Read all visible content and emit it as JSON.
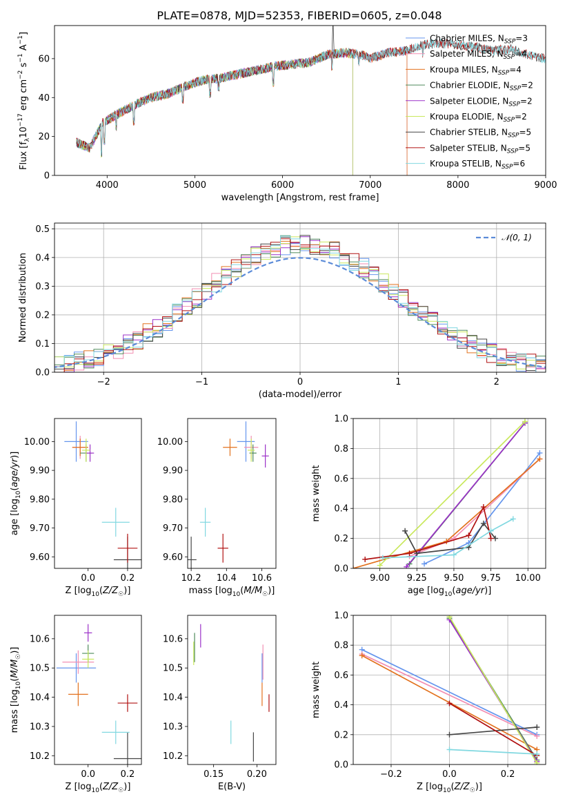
{
  "figure": {
    "title": "PLATE=0878, MJD=52353, FIBERID=0605, z=0.048"
  },
  "colors": {
    "Chabrier MILES": "#6495ed",
    "Salpeter MILES": "#f28eb2",
    "Kroupa MILES": "#e2711d",
    "Chabrier ELODIE": "#4e8a5a",
    "Salpeter ELODIE": "#9b30c8",
    "Kroupa ELODIE": "#c9e85c",
    "Chabrier STELIB": "#444444",
    "Salpeter STELIB": "#b01010",
    "Kroupa STELIB": "#80d8e0"
  },
  "labels": {
    "spectrum_x": "wavelength [Angstrom, rest frame]",
    "spectrum_y": "Flux [f_λ10^-17 erg cm^-2 s^-1 A^-1]",
    "hist_x": "(data-model)/error",
    "hist_y": "Normed distribution",
    "gauss": "𝒩(0, 1)",
    "age_y": "age [log10(age/yr)]",
    "z_x": "Z [log10(Z/Z☉)]",
    "mass_x": "mass [log10(M/M☉)]",
    "mass_y": "mass [log10(M/M☉)]",
    "ebv_x": "E(B-V)",
    "mw_y": "mass weight",
    "age_x": "age [log10(age/yr)]"
  },
  "chart_data": [
    {
      "id": "spectrum",
      "type": "line",
      "title": "PLATE=0878, MJD=52353, FIBERID=0605, z=0.048",
      "xlabel": "wavelength [Angstrom, rest frame]",
      "ylabel": "Flux [fλ10^-17 erg cm^-2 s^-1 A^-1]",
      "xlim": [
        3400,
        9000
      ],
      "ylim": [
        0,
        77
      ],
      "xticks": [
        4000,
        5000,
        6000,
        7000,
        8000,
        9000
      ],
      "yticks": [
        0,
        20,
        40,
        60
      ],
      "legend_loc": "right",
      "series": [
        {
          "name": "Chabrier MILES",
          "nssp": "3"
        },
        {
          "name": "Salpeter MILES",
          "nssp": "4"
        },
        {
          "name": "Kroupa MILES",
          "nssp": "4"
        },
        {
          "name": "Chabrier ELODIE",
          "nssp": "2"
        },
        {
          "name": "Salpeter ELODIE",
          "nssp": "2"
        },
        {
          "name": "Kroupa ELODIE",
          "nssp": "2"
        },
        {
          "name": "Chabrier STELIB",
          "nssp": "5"
        },
        {
          "name": "Salpeter STELIB",
          "nssp": "5"
        },
        {
          "name": "Kroupa STELIB",
          "nssp": "6"
        }
      ],
      "continuum": {
        "x": [
          3650,
          3800,
          3950,
          4100,
          4300,
          4500,
          4700,
          4900,
          5100,
          5300,
          5500,
          5700,
          5900,
          6100,
          6300,
          6500,
          6700,
          6900,
          7000,
          7200,
          7400,
          7600,
          7800,
          8000,
          8200,
          8400,
          8600,
          8800,
          9000
        ],
        "y": [
          17,
          14,
          27,
          31,
          36,
          40,
          42,
          46,
          49,
          50,
          52,
          54,
          56,
          57,
          58,
          62,
          63,
          62,
          60,
          63,
          64,
          67,
          68,
          67,
          66,
          64,
          65,
          62,
          60
        ]
      },
      "cutoffs": [
        {
          "series": "Kroupa ELODIE",
          "x": 6800
        },
        {
          "series": "Chabrier ELODIE",
          "x": 6800
        },
        {
          "series": "Salpeter ELODIE",
          "x": 6800
        },
        {
          "series": "Kroupa MILES",
          "x": 7420
        },
        {
          "series": "Salpeter MILES",
          "x": 7420
        },
        {
          "series": "Chabrier MILES",
          "x": 7420
        }
      ]
    },
    {
      "id": "residuals",
      "type": "line",
      "xlabel": "(data-model)/error",
      "ylabel": "Normed distribution",
      "xlim": [
        -2.5,
        2.5
      ],
      "ylim": [
        0,
        0.52
      ],
      "xticks": [
        -2,
        -1,
        0,
        1,
        2
      ],
      "yticks": [
        0.0,
        0.1,
        0.2,
        0.3,
        0.4,
        0.5
      ],
      "grid": true,
      "bin_width": 0.1,
      "gaussian_label": "𝒩(0, 1)",
      "legend_loc": "upper right"
    },
    {
      "id": "z-age",
      "type": "scatter",
      "xlabel": "Z [log10(Z/Z☉)]",
      "ylabel": "age [log10(age/yr)]",
      "xlim": [
        -0.17,
        0.27
      ],
      "ylim": [
        9.56,
        10.08
      ],
      "xticks": [
        0.0,
        0.2
      ],
      "yticks": [
        9.6,
        9.7,
        9.8,
        9.9,
        10.0
      ],
      "points": [
        {
          "series": "Chabrier MILES",
          "x": -0.06,
          "y": 10.0,
          "xerr": 0.06,
          "yerr": 0.07
        },
        {
          "series": "Salpeter MILES",
          "x": -0.04,
          "y": 9.98,
          "xerr": 0.04,
          "yerr": 0.04
        },
        {
          "series": "Kroupa MILES",
          "x": -0.04,
          "y": 9.98,
          "xerr": 0.04,
          "yerr": 0.03
        },
        {
          "series": "Chabrier ELODIE",
          "x": -0.01,
          "y": 9.96,
          "xerr": 0.03,
          "yerr": 0.03
        },
        {
          "series": "Salpeter ELODIE",
          "x": 0.01,
          "y": 9.96,
          "xerr": 0.02,
          "yerr": 0.03
        },
        {
          "series": "Kroupa ELODIE",
          "x": -0.01,
          "y": 9.97,
          "xerr": 0.02,
          "yerr": 0.04
        },
        {
          "series": "Chabrier STELIB",
          "x": 0.2,
          "y": 9.59,
          "xerr": 0.07,
          "yerr": 0.08
        },
        {
          "series": "Salpeter STELIB",
          "x": 0.2,
          "y": 9.63,
          "xerr": 0.05,
          "yerr": 0.05
        },
        {
          "series": "Kroupa STELIB",
          "x": 0.14,
          "y": 9.72,
          "xerr": 0.07,
          "yerr": 0.05
        }
      ]
    },
    {
      "id": "mass-age",
      "type": "scatter",
      "xlabel": "mass [log10(M/M☉)]",
      "ylabel": "",
      "xlim": [
        10.18,
        10.68
      ],
      "ylim": [
        9.56,
        10.08
      ],
      "xticks": [
        10.2,
        10.4,
        10.6
      ],
      "yticks": [
        9.6,
        9.7,
        9.8,
        9.9,
        10.0
      ],
      "points": [
        {
          "series": "Chabrier MILES",
          "x": 10.51,
          "y": 10.0,
          "xerr": 0.05,
          "yerr": 0.07
        },
        {
          "series": "Salpeter MILES",
          "x": 10.54,
          "y": 9.98,
          "xerr": 0.04,
          "yerr": 0.04
        },
        {
          "series": "Kroupa MILES",
          "x": 10.42,
          "y": 9.98,
          "xerr": 0.04,
          "yerr": 0.03
        },
        {
          "series": "Chabrier ELODIE",
          "x": 10.55,
          "y": 9.96,
          "xerr": 0.02,
          "yerr": 0.03
        },
        {
          "series": "Salpeter ELODIE",
          "x": 10.62,
          "y": 9.95,
          "xerr": 0.02,
          "yerr": 0.04
        },
        {
          "series": "Kroupa ELODIE",
          "x": 10.54,
          "y": 9.97,
          "xerr": 0.02,
          "yerr": 0.04
        },
        {
          "series": "Chabrier STELIB",
          "x": 10.2,
          "y": 9.59,
          "xerr": 0.03,
          "yerr": 0.08
        },
        {
          "series": "Salpeter STELIB",
          "x": 10.38,
          "y": 9.63,
          "xerr": 0.03,
          "yerr": 0.05
        },
        {
          "series": "Kroupa STELIB",
          "x": 10.28,
          "y": 9.72,
          "xerr": 0.03,
          "yerr": 0.05
        }
      ]
    },
    {
      "id": "age-weight",
      "type": "line",
      "xlabel": "age [log10(age/yr)]",
      "ylabel": "mass weight",
      "xlim": [
        8.82,
        10.12
      ],
      "ylim": [
        0,
        1.0
      ],
      "xticks": [
        9.0,
        9.25,
        9.5,
        9.75,
        10.0
      ],
      "yticks": [
        0.0,
        0.2,
        0.4,
        0.6,
        0.8,
        1.0
      ],
      "grid": true,
      "series": [
        {
          "name": "Chabrier MILES",
          "x": [
            9.3,
            9.6,
            10.08
          ],
          "y": [
            0.03,
            0.17,
            0.77
          ]
        },
        {
          "name": "Salpeter MILES",
          "x": [
            9.2,
            9.5,
            10.08
          ],
          "y": [
            0.08,
            0.2,
            0.73
          ]
        },
        {
          "name": "Kroupa MILES",
          "x": [
            8.82,
            9.45,
            10.08
          ],
          "y": [
            0.0,
            0.18,
            0.73
          ]
        },
        {
          "name": "Chabrier ELODIE",
          "x": [
            9.2,
            9.98
          ],
          "y": [
            0.03,
            0.97
          ]
        },
        {
          "name": "Salpeter ELODIE",
          "x": [
            9.18,
            9.98
          ],
          "y": [
            0.01,
            0.97
          ]
        },
        {
          "name": "Kroupa ELODIE",
          "x": [
            9.0,
            9.98
          ],
          "y": [
            0.02,
            0.98
          ]
        },
        {
          "name": "Chabrier STELIB",
          "x": [
            9.17,
            9.25,
            9.6,
            9.7,
            9.78
          ],
          "y": [
            0.25,
            0.1,
            0.14,
            0.3,
            0.2
          ]
        },
        {
          "name": "Salpeter STELIB",
          "x": [
            8.9,
            9.2,
            9.6,
            9.7,
            9.75
          ],
          "y": [
            0.06,
            0.1,
            0.22,
            0.41,
            0.2
          ]
        },
        {
          "name": "Kroupa STELIB",
          "x": [
            9.02,
            9.5,
            9.75,
            9.9
          ],
          "y": [
            0.07,
            0.09,
            0.25,
            0.33
          ]
        }
      ]
    },
    {
      "id": "z-mass",
      "type": "scatter",
      "xlabel": "Z [log10(Z/Z☉)]",
      "ylabel": "mass [log10(M/M☉)]",
      "xlim": [
        -0.17,
        0.27
      ],
      "ylim": [
        10.17,
        10.68
      ],
      "xticks": [
        0.0,
        0.2
      ],
      "yticks": [
        10.2,
        10.3,
        10.4,
        10.5,
        10.6
      ],
      "points": [
        {
          "series": "Chabrier MILES",
          "x": -0.06,
          "y": 10.5,
          "xerr": 0.1,
          "yerr": 0.05
        },
        {
          "series": "Salpeter MILES",
          "x": -0.05,
          "y": 10.52,
          "xerr": 0.08,
          "yerr": 0.04
        },
        {
          "series": "Kroupa MILES",
          "x": -0.05,
          "y": 10.41,
          "xerr": 0.05,
          "yerr": 0.04
        },
        {
          "series": "Chabrier ELODIE",
          "x": 0.0,
          "y": 10.55,
          "xerr": 0.03,
          "yerr": 0.03
        },
        {
          "series": "Salpeter ELODIE",
          "x": 0.0,
          "y": 10.62,
          "xerr": 0.02,
          "yerr": 0.03
        },
        {
          "series": "Kroupa ELODIE",
          "x": 0.0,
          "y": 10.53,
          "xerr": 0.03,
          "yerr": 0.03
        },
        {
          "series": "Chabrier STELIB",
          "x": 0.2,
          "y": 10.19,
          "xerr": 0.07,
          "yerr": 0.09
        },
        {
          "series": "Salpeter STELIB",
          "x": 0.2,
          "y": 10.38,
          "xerr": 0.05,
          "yerr": 0.03
        },
        {
          "series": "Kroupa STELIB",
          "x": 0.14,
          "y": 10.28,
          "xerr": 0.07,
          "yerr": 0.04
        }
      ]
    },
    {
      "id": "ebv-mass",
      "type": "scatter",
      "xlabel": "E(B-V)",
      "ylabel": "",
      "xlim": [
        0.12,
        0.222
      ],
      "ylim": [
        10.17,
        10.68
      ],
      "xticks": [
        0.15,
        0.2
      ],
      "yticks": [
        10.2,
        10.3,
        10.4,
        10.5,
        10.6
      ],
      "points": [
        {
          "series": "Chabrier MILES",
          "x": 0.206,
          "y": 10.5,
          "yerr": 0.05
        },
        {
          "series": "Salpeter MILES",
          "x": 0.207,
          "y": 10.52,
          "yerr": 0.06
        },
        {
          "series": "Kroupa MILES",
          "x": 0.206,
          "y": 10.41,
          "yerr": 0.04
        },
        {
          "series": "Chabrier ELODIE",
          "x": 0.128,
          "y": 10.57,
          "yerr": 0.05
        },
        {
          "series": "Salpeter ELODIE",
          "x": 0.135,
          "y": 10.61,
          "yerr": 0.04
        },
        {
          "series": "Kroupa ELODIE",
          "x": 0.127,
          "y": 10.55,
          "yerr": 0.04
        },
        {
          "series": "Chabrier STELIB",
          "x": 0.196,
          "y": 10.23,
          "yerr": 0.05
        },
        {
          "series": "Salpeter STELIB",
          "x": 0.214,
          "y": 10.38,
          "yerr": 0.03
        },
        {
          "series": "Kroupa STELIB",
          "x": 0.17,
          "y": 10.28,
          "yerr": 0.04
        }
      ]
    },
    {
      "id": "z-weight",
      "type": "line",
      "xlabel": "Z [log10(Z/Z☉)]",
      "ylabel": "mass weight",
      "xlim": [
        -0.33,
        0.33
      ],
      "ylim": [
        0,
        1.0
      ],
      "xticks": [
        -0.2,
        0.0,
        0.2
      ],
      "yticks": [
        0.0,
        0.2,
        0.4,
        0.6,
        0.8,
        1.0
      ],
      "grid": true,
      "series": [
        {
          "name": "Chabrier MILES",
          "x": [
            -0.3,
            0.3
          ],
          "y": [
            0.77,
            0.2
          ]
        },
        {
          "name": "Salpeter MILES",
          "x": [
            -0.3,
            0.3
          ],
          "y": [
            0.74,
            0.19
          ]
        },
        {
          "name": "Kroupa MILES",
          "x": [
            -0.3,
            0.3
          ],
          "y": [
            0.73,
            0.1
          ]
        },
        {
          "name": "Chabrier ELODIE",
          "x": [
            0.0,
            0.3
          ],
          "y": [
            0.98,
            0.03
          ]
        },
        {
          "name": "Salpeter ELODIE",
          "x": [
            0.0,
            0.3
          ],
          "y": [
            0.97,
            0.02
          ]
        },
        {
          "name": "Kroupa ELODIE",
          "x": [
            0.0,
            0.3
          ],
          "y": [
            0.99,
            0.01
          ]
        },
        {
          "name": "Chabrier STELIB",
          "x": [
            0.0,
            0.3
          ],
          "y": [
            0.2,
            0.25
          ]
        },
        {
          "name": "Salpeter STELIB",
          "x": [
            0.0,
            0.3
          ],
          "y": [
            0.41,
            0.06
          ]
        },
        {
          "name": "Kroupa STELIB",
          "x": [
            0.0,
            0.3
          ],
          "y": [
            0.1,
            0.07
          ]
        }
      ]
    }
  ]
}
